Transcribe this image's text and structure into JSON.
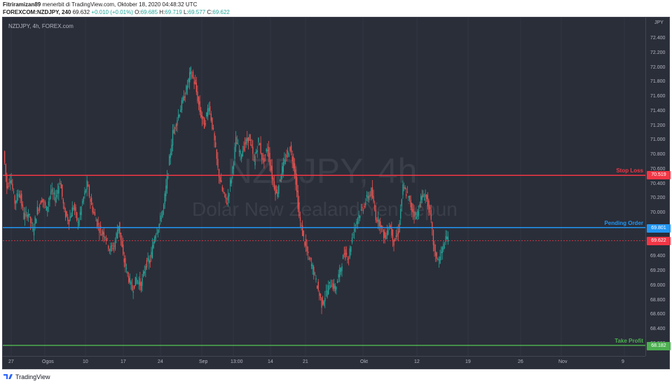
{
  "header": {
    "author": "Fitriramizan89",
    "published_text": "menerbit di TradingView.com, Oktober 18, 2020 04:48:32 UTC",
    "symbol": "FOREXCOM:NZDJPY, 240",
    "last": "69.632",
    "change": "+0.010 (+0.01%)",
    "o_label": "O:",
    "o_value": "69.685",
    "h_label": "H:",
    "h_value": "69.719",
    "l_label": "L:",
    "l_value": "69.577",
    "c_label": "C:",
    "c_value": "69.622"
  },
  "chart": {
    "legend": "NZDJPY, 4h, FOREX.com",
    "watermark_symbol": "NZDJPY, 4h",
    "watermark_name": "Dolar New Zealand/Yen Jepun",
    "currency": "JPY",
    "price_ticks": [
      "72.400",
      "72.200",
      "72.000",
      "71.800",
      "71.600",
      "71.400",
      "71.200",
      "71.000",
      "70.800",
      "70.600",
      "70.400",
      "70.200",
      "70.000",
      "69.800",
      "69.600",
      "69.400",
      "69.200",
      "69.000",
      "68.800",
      "68.600",
      "68.400",
      "68.200"
    ],
    "time_ticks": [
      "27",
      "Ogos",
      "10",
      "17",
      "24",
      "Sep",
      "13:00",
      "14",
      "21",
      "Okt",
      "12",
      "19",
      "26",
      "Nov",
      "9"
    ],
    "stop_loss": {
      "label": "Stop Loss",
      "value": "70.519",
      "color": "#f23645"
    },
    "pending_order": {
      "label": "Pending Order",
      "value": "69.801",
      "color": "#2196f3"
    },
    "current_price": {
      "value": "69.622",
      "color": "#f23645"
    },
    "take_profit": {
      "label": "Take Profit",
      "value": "68.182",
      "color": "#4caf50"
    },
    "up_color": "#26a69a",
    "down_color": "#ef5350"
  },
  "chart_data": {
    "type": "candlestick",
    "symbol": "NZDJPY",
    "ylim": [
      68.1,
      72.6
    ],
    "path": [
      [
        0,
        70.85
      ],
      [
        3,
        70.35
      ],
      [
        6,
        70.5
      ],
      [
        10,
        70.15
      ],
      [
        14,
        70.3
      ],
      [
        18,
        69.95
      ],
      [
        22,
        70.0
      ],
      [
        26,
        69.75
      ],
      [
        30,
        70.05
      ],
      [
        34,
        70.2
      ],
      [
        38,
        70.05
      ],
      [
        42,
        70.3
      ],
      [
        46,
        70.2
      ],
      [
        50,
        70.45
      ],
      [
        54,
        70.0
      ],
      [
        58,
        69.9
      ],
      [
        62,
        70.1
      ],
      [
        66,
        69.85
      ],
      [
        70,
        70.15
      ],
      [
        74,
        70.4
      ],
      [
        78,
        70.1
      ],
      [
        82,
        69.9
      ],
      [
        86,
        69.75
      ],
      [
        90,
        69.7
      ],
      [
        94,
        69.5
      ],
      [
        98,
        69.55
      ],
      [
        102,
        69.85
      ],
      [
        106,
        69.4
      ],
      [
        110,
        69.15
      ],
      [
        114,
        68.95
      ],
      [
        118,
        69.1
      ],
      [
        122,
        69.0
      ],
      [
        126,
        69.3
      ],
      [
        130,
        69.35
      ],
      [
        134,
        69.7
      ],
      [
        138,
        69.85
      ],
      [
        142,
        70.1
      ],
      [
        146,
        70.6
      ],
      [
        150,
        71.1
      ],
      [
        154,
        71.3
      ],
      [
        158,
        71.5
      ],
      [
        162,
        71.7
      ],
      [
        166,
        71.95
      ],
      [
        170,
        71.75
      ],
      [
        174,
        71.4
      ],
      [
        178,
        71.2
      ],
      [
        182,
        71.5
      ],
      [
        186,
        71.1
      ],
      [
        190,
        70.6
      ],
      [
        194,
        70.3
      ],
      [
        198,
        70.15
      ],
      [
        202,
        70.5
      ],
      [
        206,
        71.0
      ],
      [
        210,
        70.8
      ],
      [
        214,
        70.95
      ],
      [
        218,
        71.05
      ],
      [
        222,
        70.7
      ],
      [
        226,
        71.0
      ],
      [
        230,
        70.7
      ],
      [
        234,
        70.9
      ],
      [
        238,
        70.5
      ],
      [
        242,
        70.25
      ],
      [
        246,
        70.55
      ],
      [
        250,
        70.75
      ],
      [
        254,
        70.9
      ],
      [
        258,
        70.6
      ],
      [
        262,
        69.95
      ],
      [
        266,
        69.65
      ],
      [
        270,
        69.4
      ],
      [
        274,
        69.25
      ],
      [
        278,
        69.0
      ],
      [
        282,
        68.75
      ],
      [
        286,
        68.9
      ],
      [
        290,
        69.05
      ],
      [
        294,
        68.95
      ],
      [
        298,
        69.2
      ],
      [
        302,
        69.45
      ],
      [
        306,
        69.4
      ],
      [
        310,
        69.75
      ],
      [
        314,
        69.95
      ],
      [
        318,
        70.05
      ],
      [
        322,
        70.2
      ],
      [
        326,
        70.3
      ],
      [
        330,
        69.95
      ],
      [
        334,
        69.85
      ],
      [
        338,
        69.65
      ],
      [
        342,
        69.85
      ],
      [
        346,
        69.6
      ],
      [
        350,
        69.75
      ],
      [
        354,
        70.35
      ],
      [
        358,
        70.25
      ],
      [
        362,
        70.05
      ],
      [
        366,
        69.95
      ],
      [
        370,
        70.2
      ],
      [
        374,
        70.25
      ],
      [
        378,
        70.0
      ],
      [
        382,
        69.45
      ],
      [
        386,
        69.35
      ],
      [
        390,
        69.55
      ],
      [
        394,
        69.7
      ]
    ],
    "horizontal_levels": [
      {
        "label": "Stop Loss",
        "price": 70.519
      },
      {
        "label": "Pending Order",
        "price": 69.801
      },
      {
        "label": "Take Profit",
        "price": 68.182
      }
    ],
    "last_price": 69.622
  },
  "footer": {
    "brand": "TradingView"
  }
}
